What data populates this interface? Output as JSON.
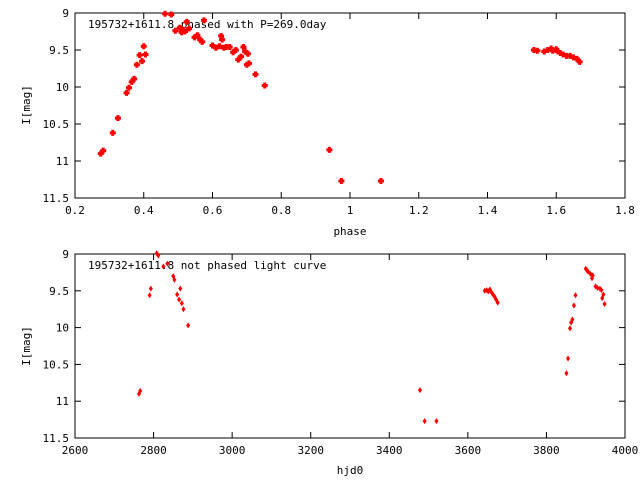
{
  "chart_data": [
    {
      "type": "scatter",
      "title": "195732+1611.8 phased with P=269.0day",
      "xlabel": "phase",
      "ylabel": "I[mag]",
      "xlim": [
        0.2,
        1.8
      ],
      "ylim": [
        9,
        11.5
      ],
      "y_inverted": true,
      "grid": false,
      "marker_color": "#ff0000",
      "x_ticks": [
        0.2,
        0.4,
        0.6,
        0.8,
        1.0,
        1.2,
        1.4,
        1.6,
        1.8
      ],
      "x_tick_labels": [
        "0.2",
        "0.4",
        "0.6",
        "0.8",
        "1",
        "1.2",
        "1.4",
        "1.6",
        "1.8"
      ],
      "y_ticks": [
        9,
        9.5,
        10,
        10.5,
        11,
        11.5
      ],
      "y_tick_labels": [
        "9",
        "9.5",
        "10",
        "10.5",
        "11",
        "11.5"
      ],
      "points": [
        [
          0.275,
          10.9
        ],
        [
          0.282,
          10.86
        ],
        [
          0.31,
          10.62
        ],
        [
          0.325,
          10.42
        ],
        [
          0.35,
          10.08
        ],
        [
          0.357,
          10.01
        ],
        [
          0.365,
          9.93
        ],
        [
          0.372,
          9.89
        ],
        [
          0.38,
          9.7
        ],
        [
          0.388,
          9.57
        ],
        [
          0.395,
          9.65
        ],
        [
          0.4,
          9.45
        ],
        [
          0.405,
          9.56
        ],
        [
          0.462,
          9.01
        ],
        [
          0.48,
          9.02
        ],
        [
          0.492,
          9.24
        ],
        [
          0.505,
          9.2
        ],
        [
          0.51,
          9.26
        ],
        [
          0.515,
          9.23
        ],
        [
          0.52,
          9.25
        ],
        [
          0.525,
          9.12
        ],
        [
          0.532,
          9.21
        ],
        [
          0.548,
          9.33
        ],
        [
          0.556,
          9.3
        ],
        [
          0.564,
          9.36
        ],
        [
          0.57,
          9.39
        ],
        [
          0.575,
          9.1
        ],
        [
          0.6,
          9.44
        ],
        [
          0.61,
          9.47
        ],
        [
          0.62,
          9.45
        ],
        [
          0.625,
          9.31
        ],
        [
          0.628,
          9.36
        ],
        [
          0.633,
          9.47
        ],
        [
          0.64,
          9.46
        ],
        [
          0.65,
          9.46
        ],
        [
          0.66,
          9.53
        ],
        [
          0.668,
          9.5
        ],
        [
          0.675,
          9.63
        ],
        [
          0.683,
          9.59
        ],
        [
          0.69,
          9.46
        ],
        [
          0.695,
          9.52
        ],
        [
          0.7,
          9.7
        ],
        [
          0.703,
          9.55
        ],
        [
          0.706,
          9.68
        ],
        [
          0.725,
          9.83
        ],
        [
          0.752,
          9.98
        ],
        [
          0.94,
          10.85
        ],
        [
          0.975,
          11.27
        ],
        [
          1.09,
          11.27
        ],
        [
          1.535,
          9.5
        ],
        [
          1.545,
          9.51
        ],
        [
          1.565,
          9.52
        ],
        [
          1.575,
          9.5
        ],
        [
          1.585,
          9.48
        ],
        [
          1.59,
          9.51
        ],
        [
          1.6,
          9.49
        ],
        [
          1.605,
          9.52
        ],
        [
          1.612,
          9.54
        ],
        [
          1.62,
          9.56
        ],
        [
          1.63,
          9.58
        ],
        [
          1.64,
          9.58
        ],
        [
          1.65,
          9.6
        ],
        [
          1.66,
          9.62
        ],
        [
          1.668,
          9.66
        ]
      ]
    },
    {
      "type": "scatter",
      "title": "195732+1611.8 not phased light curve",
      "xlabel": "hjd0",
      "ylabel": "I[mag]",
      "xlim": [
        2600,
        4000
      ],
      "ylim": [
        9,
        11.5
      ],
      "y_inverted": true,
      "grid": false,
      "marker_color": "#ff0000",
      "x_ticks": [
        2600,
        2800,
        3000,
        3200,
        3400,
        3600,
        3800,
        4000
      ],
      "x_tick_labels": [
        "2600",
        "2800",
        "3000",
        "3200",
        "3400",
        "3600",
        "3800",
        "4000"
      ],
      "y_ticks": [
        9,
        9.5,
        10,
        10.5,
        11,
        11.5
      ],
      "y_tick_labels": [
        "9",
        "9.5",
        "10",
        "10.5",
        "11",
        "11.5"
      ],
      "points": [
        [
          2763,
          10.9
        ],
        [
          2766,
          10.86
        ],
        [
          2790,
          9.56
        ],
        [
          2793,
          9.47
        ],
        [
          2808,
          8.99
        ],
        [
          2812,
          9.02
        ],
        [
          2825,
          9.17
        ],
        [
          2835,
          9.13
        ],
        [
          2850,
          9.3
        ],
        [
          2853,
          9.35
        ],
        [
          2860,
          9.55
        ],
        [
          2865,
          9.62
        ],
        [
          2868,
          9.47
        ],
        [
          2872,
          9.67
        ],
        [
          2876,
          9.75
        ],
        [
          2888,
          9.97
        ],
        [
          3478,
          10.85
        ],
        [
          3490,
          11.27
        ],
        [
          3520,
          11.27
        ],
        [
          3643,
          9.5
        ],
        [
          3648,
          9.49
        ],
        [
          3652,
          9.51
        ],
        [
          3656,
          9.48
        ],
        [
          3660,
          9.52
        ],
        [
          3664,
          9.55
        ],
        [
          3668,
          9.58
        ],
        [
          3672,
          9.62
        ],
        [
          3676,
          9.66
        ],
        [
          3851,
          10.62
        ],
        [
          3855,
          10.42
        ],
        [
          3860,
          10.01
        ],
        [
          3863,
          9.93
        ],
        [
          3866,
          9.89
        ],
        [
          3870,
          9.7
        ],
        [
          3874,
          9.56
        ],
        [
          3900,
          9.2
        ],
        [
          3903,
          9.22
        ],
        [
          3906,
          9.24
        ],
        [
          3912,
          9.27
        ],
        [
          3916,
          9.33
        ],
        [
          3918,
          9.29
        ],
        [
          3925,
          9.44
        ],
        [
          3930,
          9.46
        ],
        [
          3936,
          9.47
        ],
        [
          3940,
          9.49
        ],
        [
          3945,
          9.55
        ],
        [
          3948,
          9.68
        ],
        [
          3942,
          9.6
        ]
      ]
    }
  ]
}
